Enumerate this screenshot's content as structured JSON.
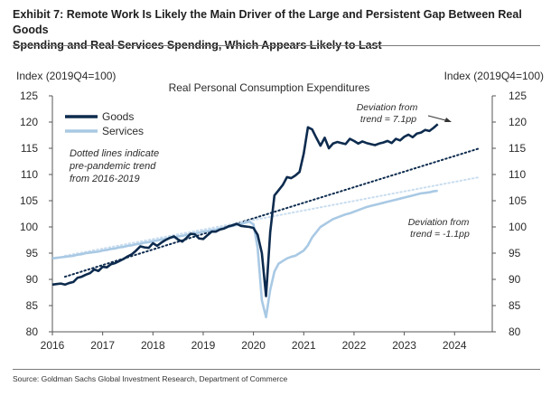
{
  "exhibit": {
    "title_line1": "Exhibit 7: Remote Work Is Likely the Main Driver of the Large and Persistent Gap Between Real Goods",
    "title_line2": "Spending and Real Services Spending, Which Appears Likely to Last"
  },
  "source": "Source: Goldman Sachs Global Investment Research, Department of Commerce",
  "colors": {
    "goods": "#0d2b4e",
    "services": "#a9c9e4",
    "trend_goods": "#0d2b4e",
    "trend_services": "#c9ddef",
    "axis": "#555555"
  },
  "chart_data": {
    "type": "line",
    "title": "Real Personal Consumption Expenditures",
    "ylabel_left": "Index (2019Q4=100)",
    "ylabel_right": "Index (2019Q4=100)",
    "xlim": [
      2016.0,
      2024.75
    ],
    "ylim": [
      80,
      125
    ],
    "x_ticks": [
      "2016",
      "2017",
      "2018",
      "2019",
      "2020",
      "2021",
      "2022",
      "2023",
      "2024"
    ],
    "y_ticks": [
      80,
      85,
      90,
      95,
      100,
      105,
      110,
      115,
      120,
      125
    ],
    "grid": false,
    "legend_position": "top-left",
    "series": [
      {
        "name": "Goods",
        "x": [
          2016.0,
          2016.083,
          2016.167,
          2016.25,
          2016.333,
          2016.417,
          2016.5,
          2016.583,
          2016.667,
          2016.75,
          2016.833,
          2016.917,
          2017.0,
          2017.083,
          2017.167,
          2017.25,
          2017.333,
          2017.417,
          2017.5,
          2017.583,
          2017.667,
          2017.75,
          2017.833,
          2017.917,
          2018.0,
          2018.083,
          2018.167,
          2018.25,
          2018.333,
          2018.417,
          2018.5,
          2018.583,
          2018.667,
          2018.75,
          2018.833,
          2018.917,
          2019.0,
          2019.083,
          2019.167,
          2019.25,
          2019.333,
          2019.417,
          2019.5,
          2019.583,
          2019.667,
          2019.75,
          2019.833,
          2019.917,
          2020.0,
          2020.083,
          2020.167,
          2020.25,
          2020.333,
          2020.417,
          2020.5,
          2020.583,
          2020.667,
          2020.75,
          2020.833,
          2020.917,
          2021.0,
          2021.083,
          2021.167,
          2021.25,
          2021.333,
          2021.417,
          2021.5,
          2021.583,
          2021.667,
          2021.75,
          2021.833,
          2021.917,
          2022.0,
          2022.083,
          2022.167,
          2022.25,
          2022.333,
          2022.417,
          2022.5,
          2022.583,
          2022.667,
          2022.75,
          2022.833,
          2022.917,
          2023.0,
          2023.083,
          2023.167,
          2023.25,
          2023.333,
          2023.417,
          2023.5,
          2023.583,
          2023.667
        ],
        "values": [
          89.0,
          89.1,
          89.2,
          89.0,
          89.3,
          89.5,
          90.3,
          90.5,
          90.9,
          91.2,
          91.9,
          91.6,
          92.4,
          92.3,
          92.9,
          93.1,
          93.5,
          93.9,
          94.4,
          94.8,
          95.5,
          96.3,
          96.1,
          96.0,
          96.9,
          96.4,
          97.0,
          97.5,
          97.9,
          98.2,
          97.6,
          97.2,
          97.9,
          98.7,
          98.6,
          97.8,
          97.7,
          98.4,
          99.1,
          99.1,
          99.5,
          99.7,
          100.1,
          100.3,
          100.6,
          100.2,
          100.1,
          100.0,
          99.8,
          98.5,
          95.0,
          86.8,
          99.0,
          106.0,
          107.0,
          108.0,
          109.5,
          109.3,
          109.8,
          110.5,
          114.0,
          119.0,
          118.6,
          117.0,
          115.5,
          117.0,
          115.0,
          115.9,
          116.2,
          116.0,
          115.8,
          116.8,
          116.4,
          115.9,
          116.3,
          116.0,
          115.8,
          115.6,
          115.9,
          116.1,
          116.4,
          116.0,
          116.8,
          116.5,
          117.2,
          117.6,
          117.1,
          117.8,
          118.0,
          118.5,
          118.3,
          118.9,
          119.6
        ]
      },
      {
        "name": "Services",
        "x": [
          2016.0,
          2016.083,
          2016.167,
          2016.25,
          2016.333,
          2016.417,
          2016.5,
          2016.583,
          2016.667,
          2016.75,
          2016.833,
          2016.917,
          2017.0,
          2017.083,
          2017.167,
          2017.25,
          2017.333,
          2017.417,
          2017.5,
          2017.583,
          2017.667,
          2017.75,
          2017.833,
          2017.917,
          2018.0,
          2018.083,
          2018.167,
          2018.25,
          2018.333,
          2018.417,
          2018.5,
          2018.583,
          2018.667,
          2018.75,
          2018.833,
          2018.917,
          2019.0,
          2019.083,
          2019.167,
          2019.25,
          2019.333,
          2019.417,
          2019.5,
          2019.583,
          2019.667,
          2019.75,
          2019.833,
          2019.917,
          2020.0,
          2020.083,
          2020.167,
          2020.25,
          2020.333,
          2020.417,
          2020.5,
          2020.583,
          2020.667,
          2020.75,
          2020.833,
          2020.917,
          2021.0,
          2021.083,
          2021.167,
          2021.25,
          2021.333,
          2021.417,
          2021.5,
          2021.583,
          2021.667,
          2021.75,
          2021.833,
          2021.917,
          2022.0,
          2022.083,
          2022.167,
          2022.25,
          2022.333,
          2022.417,
          2022.5,
          2022.583,
          2022.667,
          2022.75,
          2022.833,
          2022.917,
          2023.0,
          2023.083,
          2023.167,
          2023.25,
          2023.333,
          2023.417,
          2023.5,
          2023.583,
          2023.667
        ],
        "values": [
          94.0,
          94.1,
          94.2,
          94.3,
          94.4,
          94.5,
          94.7,
          94.8,
          95.0,
          95.1,
          95.2,
          95.3,
          95.5,
          95.6,
          95.8,
          95.9,
          96.1,
          96.2,
          96.4,
          96.5,
          96.7,
          96.8,
          97.0,
          97.1,
          97.3,
          97.4,
          97.6,
          97.7,
          97.9,
          98.0,
          98.2,
          98.3,
          98.5,
          98.6,
          98.8,
          98.9,
          99.1,
          99.2,
          99.4,
          99.5,
          99.7,
          99.8,
          100.0,
          100.2,
          100.4,
          100.6,
          100.8,
          101.0,
          100.5,
          96.0,
          86.0,
          82.8,
          88.0,
          91.5,
          93.0,
          93.5,
          94.0,
          94.3,
          94.5,
          95.0,
          95.5,
          96.5,
          98.0,
          99.0,
          100.0,
          100.5,
          101.0,
          101.5,
          101.8,
          102.1,
          102.4,
          102.6,
          102.9,
          103.2,
          103.5,
          103.8,
          104.0,
          104.2,
          104.4,
          104.6,
          104.8,
          105.0,
          105.2,
          105.4,
          105.6,
          105.8,
          106.0,
          106.2,
          106.4,
          106.5,
          106.6,
          106.8,
          106.9
        ]
      },
      {
        "name": "Goods trend",
        "x": [
          2016.25,
          2024.5
        ],
        "values": [
          90.5,
          115.0
        ]
      },
      {
        "name": "Services trend",
        "x": [
          2016.25,
          2024.5
        ],
        "values": [
          94.5,
          109.5
        ]
      }
    ],
    "annotations": [
      {
        "id": "note",
        "lines": [
          "Dotted lines indicate",
          "pre-pandemic trend",
          "from 2016-2019"
        ]
      },
      {
        "id": "deviation-goods",
        "lines": [
          "Deviation from",
          "trend = 7.1pp"
        ]
      },
      {
        "id": "deviation-services",
        "lines": [
          "Deviation from",
          "trend = -1.1pp"
        ]
      }
    ]
  }
}
